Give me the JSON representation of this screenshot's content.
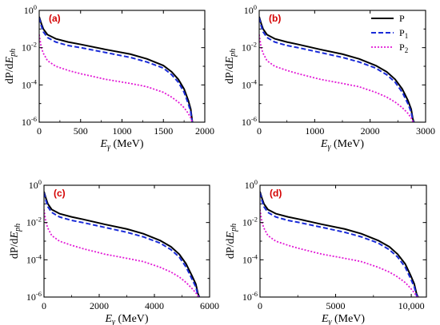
{
  "figure": {
    "ylabel": {
      "pre": "dP/d",
      "main": "E",
      "sub": "ph"
    },
    "xlabel": {
      "main": "E",
      "sub": "γ",
      "post": "(MeV)"
    }
  },
  "colors": {
    "P": "#000000",
    "P1": "#1a2bd8",
    "P2": "#e21ad6",
    "panel_letter": "#d40000",
    "axis": "#000000"
  },
  "legend": {
    "placement": "top-right of panel (b)",
    "entries": [
      {
        "key": "P",
        "main": "P",
        "sub": ""
      },
      {
        "key": "P1",
        "main": "P",
        "sub": "1"
      },
      {
        "key": "P2",
        "main": "P",
        "sub": "2"
      }
    ]
  },
  "chart_data": [
    {
      "type": "line",
      "panel": "(a)",
      "yscale": "log",
      "xlim": [
        0,
        2000
      ],
      "ylim": [
        1e-06,
        1
      ],
      "grid": false,
      "xticks": [
        0,
        500,
        1000,
        1500,
        2000
      ],
      "xtick_labels": [
        "0",
        "500",
        "1000",
        "1500",
        "2000"
      ],
      "yticks_exp": [
        "0",
        "-2",
        "-4",
        "-6"
      ],
      "series": [
        {
          "key": "P",
          "x": [
            0,
            25,
            50,
            100,
            200,
            350,
            500,
            800,
            1100,
            1300,
            1500,
            1600,
            1680,
            1750,
            1800,
            1830,
            1845,
            1850
          ],
          "y": [
            0.45,
            0.2,
            0.1,
            0.05,
            0.03,
            0.02,
            0.015,
            0.008,
            0.0045,
            0.0025,
            0.0011,
            0.0005,
            0.0002,
            6e-05,
            1.5e-05,
            5e-06,
            1.5e-06,
            1e-06
          ]
        },
        {
          "key": "P1",
          "x": [
            0,
            25,
            50,
            100,
            200,
            350,
            500,
            800,
            1100,
            1300,
            1500,
            1600,
            1680,
            1750,
            1800,
            1830,
            1845,
            1850
          ],
          "y": [
            0.4,
            0.15,
            0.07,
            0.035,
            0.02,
            0.013,
            0.01,
            0.0055,
            0.003,
            0.0017,
            0.0008,
            0.00035,
            0.00014,
            4e-05,
            1e-05,
            3.5e-06,
            1.2e-06,
            1e-06
          ]
        },
        {
          "key": "P2",
          "x": [
            0,
            25,
            50,
            100,
            200,
            350,
            500,
            800,
            1100,
            1300,
            1500,
            1600,
            1680,
            1750,
            1800,
            1830,
            1845,
            1850
          ],
          "y": [
            0.05,
            0.01,
            0.005,
            0.002,
            0.001,
            0.0006,
            0.0004,
            0.0002,
            0.00012,
            8e-05,
            4e-05,
            2.2e-05,
            1.2e-05,
            6e-06,
            3e-06,
            1.7e-06,
            1.1e-06,
            1e-06
          ]
        }
      ]
    },
    {
      "type": "line",
      "panel": "(b)",
      "yscale": "log",
      "xlim": [
        0,
        3000
      ],
      "ylim": [
        1e-06,
        1
      ],
      "grid": false,
      "xticks": [
        0,
        1000,
        2000,
        3000
      ],
      "xtick_labels": [
        "0",
        "1000",
        "2000",
        "3000"
      ],
      "yticks_exp": [
        "0",
        "-2",
        "-4",
        "-6"
      ],
      "series": [
        {
          "key": "P",
          "x": [
            0,
            35,
            70,
            140,
            280,
            500,
            700,
            1100,
            1500,
            1800,
            2100,
            2300,
            2450,
            2580,
            2680,
            2740,
            2770,
            2790
          ],
          "y": [
            0.45,
            0.2,
            0.1,
            0.05,
            0.03,
            0.02,
            0.015,
            0.008,
            0.0045,
            0.0025,
            0.0011,
            0.0005,
            0.0002,
            6e-05,
            1.5e-05,
            5e-06,
            1.5e-06,
            1e-06
          ]
        },
        {
          "key": "P1",
          "x": [
            0,
            35,
            70,
            140,
            280,
            500,
            700,
            1100,
            1500,
            1800,
            2100,
            2300,
            2450,
            2580,
            2680,
            2740,
            2770,
            2790
          ],
          "y": [
            0.4,
            0.15,
            0.07,
            0.035,
            0.02,
            0.013,
            0.01,
            0.0055,
            0.003,
            0.0017,
            0.0008,
            0.00035,
            0.00014,
            4e-05,
            1e-05,
            3.5e-06,
            1.2e-06,
            1e-06
          ]
        },
        {
          "key": "P2",
          "x": [
            0,
            35,
            70,
            140,
            280,
            500,
            700,
            1100,
            1500,
            1800,
            2100,
            2300,
            2450,
            2580,
            2680,
            2740,
            2770,
            2790
          ],
          "y": [
            0.05,
            0.01,
            0.005,
            0.002,
            0.001,
            0.0006,
            0.0004,
            0.0002,
            0.00012,
            8e-05,
            4e-05,
            2.2e-05,
            1.2e-05,
            6e-06,
            3e-06,
            1.7e-06,
            1.1e-06,
            1e-06
          ]
        }
      ]
    },
    {
      "type": "line",
      "panel": "(c)",
      "yscale": "log",
      "xlim": [
        0,
        6000
      ],
      "ylim": [
        1e-06,
        1
      ],
      "grid": false,
      "xticks": [
        0,
        2000,
        4000,
        6000
      ],
      "xtick_labels": [
        "0",
        "2000",
        "4000",
        "6000"
      ],
      "yticks_exp": [
        "0",
        "-2",
        "-4",
        "-6"
      ],
      "series": [
        {
          "key": "P",
          "x": [
            0,
            70,
            140,
            280,
            560,
            1000,
            1400,
            2200,
            3000,
            3600,
            4200,
            4600,
            4900,
            5150,
            5350,
            5500,
            5580,
            5630
          ],
          "y": [
            0.45,
            0.2,
            0.1,
            0.05,
            0.03,
            0.02,
            0.015,
            0.008,
            0.0045,
            0.0025,
            0.0011,
            0.0005,
            0.0002,
            6e-05,
            1.5e-05,
            5e-06,
            1.5e-06,
            1e-06
          ]
        },
        {
          "key": "P1",
          "x": [
            0,
            70,
            140,
            280,
            560,
            1000,
            1400,
            2200,
            3000,
            3600,
            4200,
            4600,
            4900,
            5150,
            5350,
            5500,
            5580,
            5630
          ],
          "y": [
            0.4,
            0.15,
            0.07,
            0.035,
            0.02,
            0.013,
            0.01,
            0.0055,
            0.003,
            0.0017,
            0.0008,
            0.00035,
            0.00014,
            4e-05,
            1e-05,
            3.5e-06,
            1.2e-06,
            1e-06
          ]
        },
        {
          "key": "P2",
          "x": [
            0,
            70,
            140,
            280,
            560,
            1000,
            1400,
            2200,
            3000,
            3600,
            4200,
            4600,
            4900,
            5150,
            5350,
            5500,
            5580,
            5630
          ],
          "y": [
            0.05,
            0.01,
            0.005,
            0.002,
            0.001,
            0.0006,
            0.0004,
            0.0002,
            0.00012,
            8e-05,
            4e-05,
            2.2e-05,
            1.2e-05,
            6e-06,
            3e-06,
            1.7e-06,
            1.1e-06,
            1e-06
          ]
        }
      ]
    },
    {
      "type": "line",
      "panel": "(d)",
      "yscale": "log",
      "xlim": [
        0,
        11000
      ],
      "ylim": [
        1e-06,
        1
      ],
      "grid": false,
      "xticks": [
        0,
        5000,
        10000
      ],
      "xtick_labels": [
        "0",
        "5000",
        "10,000"
      ],
      "yticks_exp": [
        "0",
        "-2",
        "-4",
        "-6"
      ],
      "series": [
        {
          "key": "P",
          "x": [
            0,
            130,
            260,
            520,
            1040,
            1850,
            2600,
            4100,
            5600,
            6700,
            7800,
            8550,
            9100,
            9600,
            9950,
            10200,
            10350,
            10450
          ],
          "y": [
            0.45,
            0.2,
            0.1,
            0.05,
            0.03,
            0.02,
            0.015,
            0.008,
            0.0045,
            0.0025,
            0.0011,
            0.0005,
            0.0002,
            6e-05,
            1.5e-05,
            5e-06,
            1.5e-06,
            1e-06
          ]
        },
        {
          "key": "P1",
          "x": [
            0,
            130,
            260,
            520,
            1040,
            1850,
            2600,
            4100,
            5600,
            6700,
            7800,
            8550,
            9100,
            9600,
            9950,
            10200,
            10350,
            10450
          ],
          "y": [
            0.4,
            0.15,
            0.07,
            0.035,
            0.02,
            0.013,
            0.01,
            0.0055,
            0.003,
            0.0017,
            0.0008,
            0.00035,
            0.00014,
            4e-05,
            1e-05,
            3.5e-06,
            1.2e-06,
            1e-06
          ]
        },
        {
          "key": "P2",
          "x": [
            0,
            130,
            260,
            520,
            1040,
            1850,
            2600,
            4100,
            5600,
            6700,
            7800,
            8550,
            9100,
            9600,
            9950,
            10200,
            10350,
            10450
          ],
          "y": [
            0.05,
            0.01,
            0.005,
            0.002,
            0.001,
            0.0006,
            0.0004,
            0.0002,
            0.00012,
            8e-05,
            4e-05,
            2.2e-05,
            1.2e-05,
            6e-06,
            3e-06,
            1.7e-06,
            1.1e-06,
            1e-06
          ]
        }
      ]
    }
  ]
}
